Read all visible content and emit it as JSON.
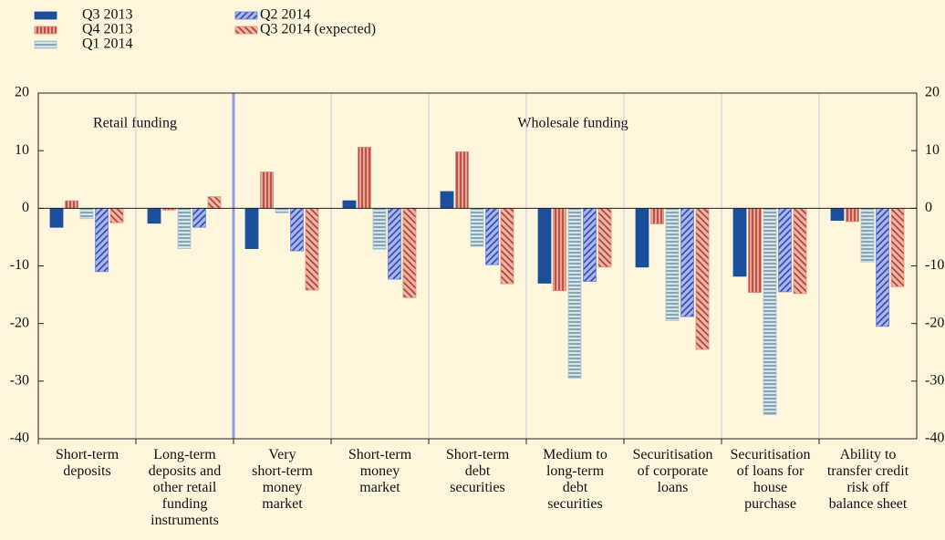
{
  "chart_data": {
    "type": "bar",
    "categories": [
      "Short-term\ndeposits",
      "Long-term\ndeposits and\nother retail\nfunding\ninstruments",
      "Very\nshort-term\nmoney\nmarket",
      "Short-term\nmoney\nmarket",
      "Short-term\ndebt\nsecurities",
      "Medium to\nlong-term\ndebt\nsecurities",
      "Securitisation\nof corporate\nloans",
      "Securitisation\nof loans for\nhouse\npurchase",
      "Ability to\ntransfer credit\nrisk off\nbalance sheet"
    ],
    "series": [
      {
        "name": "Q3 2013",
        "color": "#1b4f9c",
        "pattern": "solid",
        "values": [
          -3.3,
          -2.6,
          -7,
          1.3,
          2.9,
          -13,
          -10.2,
          -11.8,
          -2.1
        ]
      },
      {
        "name": "Q4 2013",
        "color": "#e0867a",
        "pattern": "vertical",
        "values": [
          1.3,
          -0.3,
          6.3,
          10.6,
          9.8,
          -14.3,
          -2.7,
          -14.6,
          -2.3
        ]
      },
      {
        "name": "Q1 2014",
        "color": "#a9c3cf",
        "pattern": "horizontal",
        "values": [
          -1.8,
          -7,
          -0.8,
          -7.1,
          -6.6,
          -29.5,
          -19.5,
          -35.8,
          -9.3
        ]
      },
      {
        "name": "Q2 2014",
        "color": "#6f86d6",
        "pattern": "diagonal-up",
        "values": [
          -11,
          -3.3,
          -7.4,
          -12.3,
          -9.8,
          -12.7,
          -18.8,
          -14.5,
          -20.5
        ]
      },
      {
        "name": "Q3 2014 (expected)",
        "color": "#e3907e",
        "pattern": "diagonal-down",
        "values": [
          -2.5,
          2,
          -14.2,
          -15.5,
          -13.1,
          -10.2,
          -24.5,
          -14.8,
          -13.6
        ]
      }
    ],
    "annotations": [
      "Retail funding",
      "Wholesale funding"
    ],
    "ylim": [
      -40,
      20
    ],
    "yticks": [
      20,
      10,
      0,
      -10,
      -20,
      -30,
      -40
    ],
    "y2lim": [
      -40,
      20
    ],
    "y2ticks": [
      20,
      10,
      0,
      -10,
      -20,
      -30,
      -40
    ],
    "legend": "top-left"
  }
}
